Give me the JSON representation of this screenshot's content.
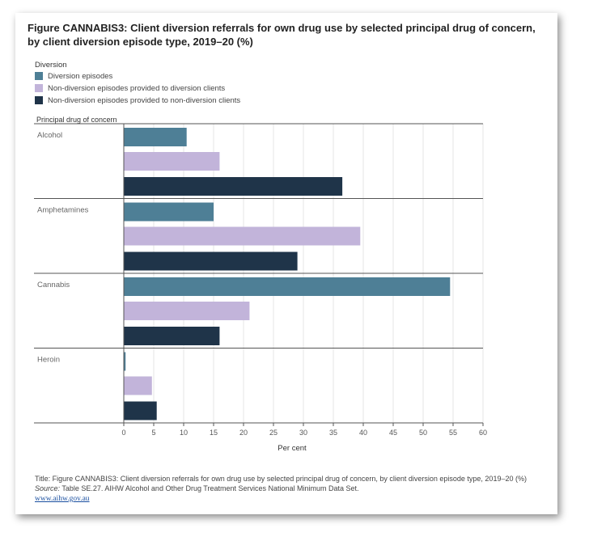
{
  "chart_data": {
    "type": "bar",
    "orientation": "horizontal",
    "title": "Figure CANNABIS3: Client diversion referrals for own drug use by selected principal drug of concern, by client diversion episode type, 2019–20 (%)",
    "legend_title": "Diversion",
    "category_axis_title": "Principal drug of concern",
    "xlabel": "Per cent",
    "xlim": [
      0,
      60
    ],
    "xticks": [
      0,
      5,
      10,
      15,
      20,
      25,
      30,
      35,
      40,
      45,
      50,
      55,
      60
    ],
    "grid": true,
    "legend_position": "top-left",
    "categories": [
      "Alcohol",
      "Amphetamines",
      "Cannabis",
      "Heroin"
    ],
    "series": [
      {
        "name": "Diversion episodes",
        "color": "#4e7f96",
        "values": [
          10.5,
          15.0,
          54.5,
          0.3
        ]
      },
      {
        "name": "Non-diversion episodes provided to diversion clients",
        "color": "#c2b4da",
        "values": [
          16.0,
          39.5,
          21.0,
          4.7
        ]
      },
      {
        "name": "Non-diversion episodes provided to non-diversion clients",
        "color": "#1f3449",
        "values": [
          36.5,
          29.0,
          16.0,
          5.5
        ]
      }
    ]
  },
  "footer": {
    "title_text": "Title: Figure CANNABIS3: Client diversion referrals for own drug use by selected principal drug of concern, by client diversion episode type, 2019–20  (%)",
    "source_label": "Source:",
    "source_text": " Table SE.27. AIHW Alcohol and Other Drug Treatment Services National Minimum Data Set.",
    "link_text": "www.aihw.gov.au"
  }
}
